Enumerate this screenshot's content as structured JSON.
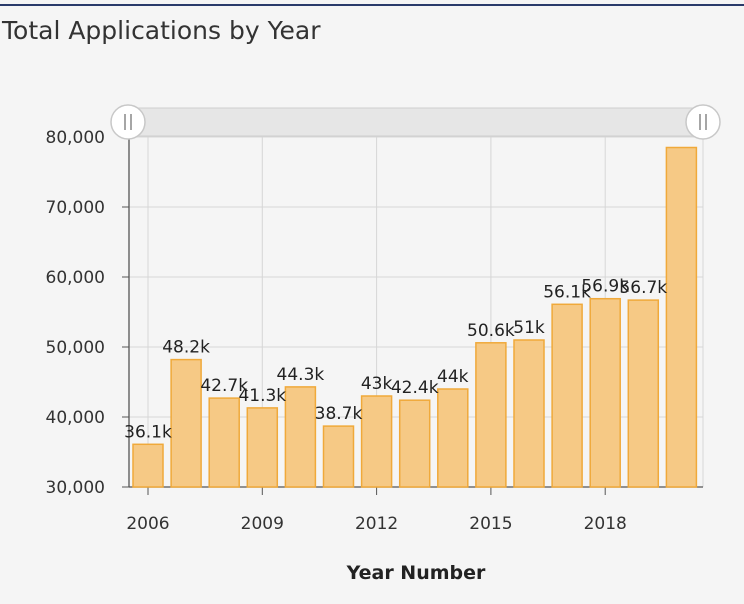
{
  "chart_data": {
    "type": "bar",
    "title": "Total Applications by Year",
    "xlabel": "Year Number",
    "ylabel": "",
    "ylim": [
      30000,
      80000
    ],
    "yticks": [
      30000,
      40000,
      50000,
      60000,
      70000,
      80000
    ],
    "ytick_labels": [
      "30,000",
      "40,000",
      "50,000",
      "60,000",
      "70,000",
      "80,000"
    ],
    "xticks": [
      2006,
      2009,
      2012,
      2015,
      2018
    ],
    "xtick_labels": [
      "2006",
      "2009",
      "2012",
      "2015",
      "2018"
    ],
    "categories": [
      2006,
      2007,
      2008,
      2009,
      2010,
      2011,
      2012,
      2013,
      2014,
      2015,
      2016,
      2017,
      2018,
      2019,
      2020
    ],
    "values": [
      36100,
      48200,
      42700,
      41300,
      44300,
      38700,
      43000,
      42400,
      44000,
      50600,
      51000,
      56100,
      56900,
      56700,
      78500
    ],
    "data_labels": [
      "36.1k",
      "48.2k",
      "42.7k",
      "41.3k",
      "44.3k",
      "38.7k",
      "43k",
      "42.4k",
      "44k",
      "50.6k",
      "51k",
      "56.1k",
      "56.9k",
      "56.7k",
      ""
    ],
    "grid": true,
    "bar_color": "#f6c985",
    "bar_border_color": "#f0a93a",
    "slider_color": "#e6e6e6"
  }
}
